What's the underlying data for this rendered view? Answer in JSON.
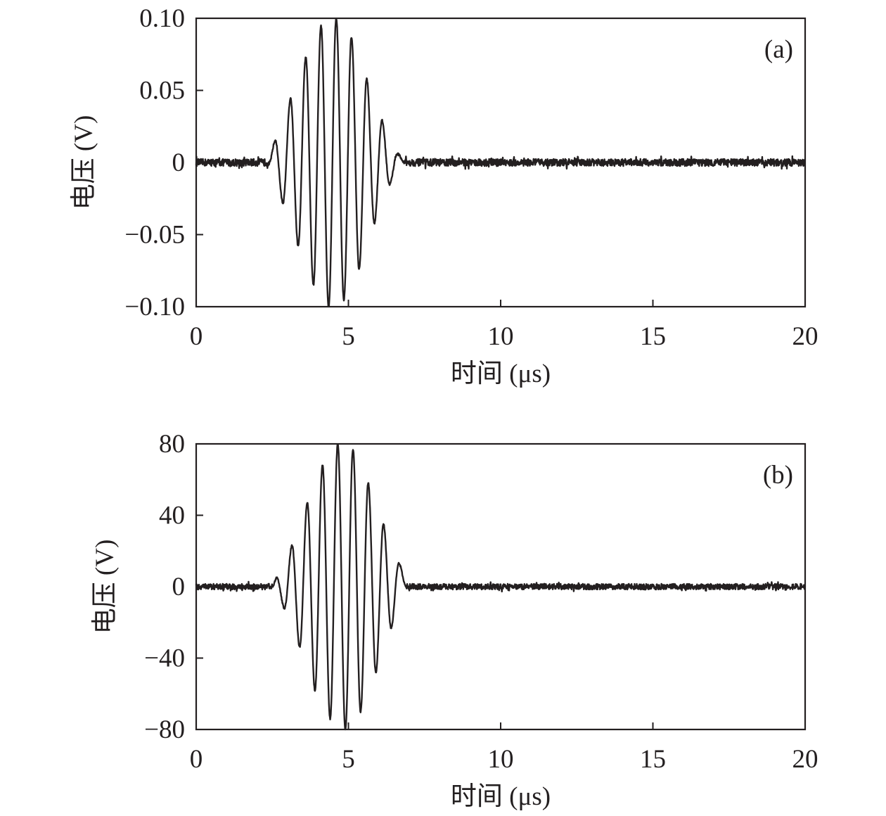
{
  "chart_data": [
    {
      "type": "line",
      "panel_label": "(a)",
      "xlabel": "时间 (μs)",
      "ylabel": "电压 (V)",
      "xlim": [
        0,
        20
      ],
      "ylim": [
        -0.1,
        0.1
      ],
      "x_ticks": [
        "0",
        "5",
        "10",
        "15",
        "20"
      ],
      "y_ticks": [
        "0.10",
        "0.05",
        "0",
        "−0.05",
        "−0.10"
      ],
      "grid": false,
      "legend": "none",
      "signal": {
        "description": "tone burst",
        "x": [
          2.4,
          2.6,
          2.85,
          3.1,
          3.35,
          3.6,
          3.85,
          4.1,
          4.35,
          4.6,
          4.85,
          5.1,
          5.35,
          5.6,
          5.85,
          6.1,
          6.35,
          6.6,
          6.85
        ],
        "y": [
          0,
          0.015,
          -0.028,
          0.044,
          -0.058,
          0.073,
          -0.085,
          0.095,
          -0.1,
          0.1,
          -0.095,
          0.087,
          -0.074,
          0.058,
          -0.042,
          0.029,
          -0.015,
          0.006,
          0
        ],
        "noise_amplitude": 0.0025
      }
    },
    {
      "type": "line",
      "panel_label": "(b)",
      "xlabel": "时间 (μs)",
      "ylabel": "电压 (V)",
      "xlim": [
        0,
        20
      ],
      "ylim": [
        -80,
        80
      ],
      "x_ticks": [
        "0",
        "5",
        "10",
        "15",
        "20"
      ],
      "y_ticks": [
        "80",
        "40",
        "0",
        "−40",
        "−80"
      ],
      "grid": false,
      "legend": "none",
      "signal": {
        "description": "tone burst",
        "x": [
          2.5,
          2.65,
          2.9,
          3.15,
          3.4,
          3.65,
          3.9,
          4.15,
          4.4,
          4.65,
          4.9,
          5.15,
          5.4,
          5.65,
          5.9,
          6.15,
          6.4,
          6.65,
          6.9
        ],
        "y": [
          0,
          5,
          -12,
          23,
          -34,
          47,
          -58,
          68,
          -74,
          80,
          -80,
          77,
          -70,
          58,
          -48,
          35,
          -23,
          13,
          0
        ],
        "noise_amplitude": 1.6
      }
    }
  ]
}
